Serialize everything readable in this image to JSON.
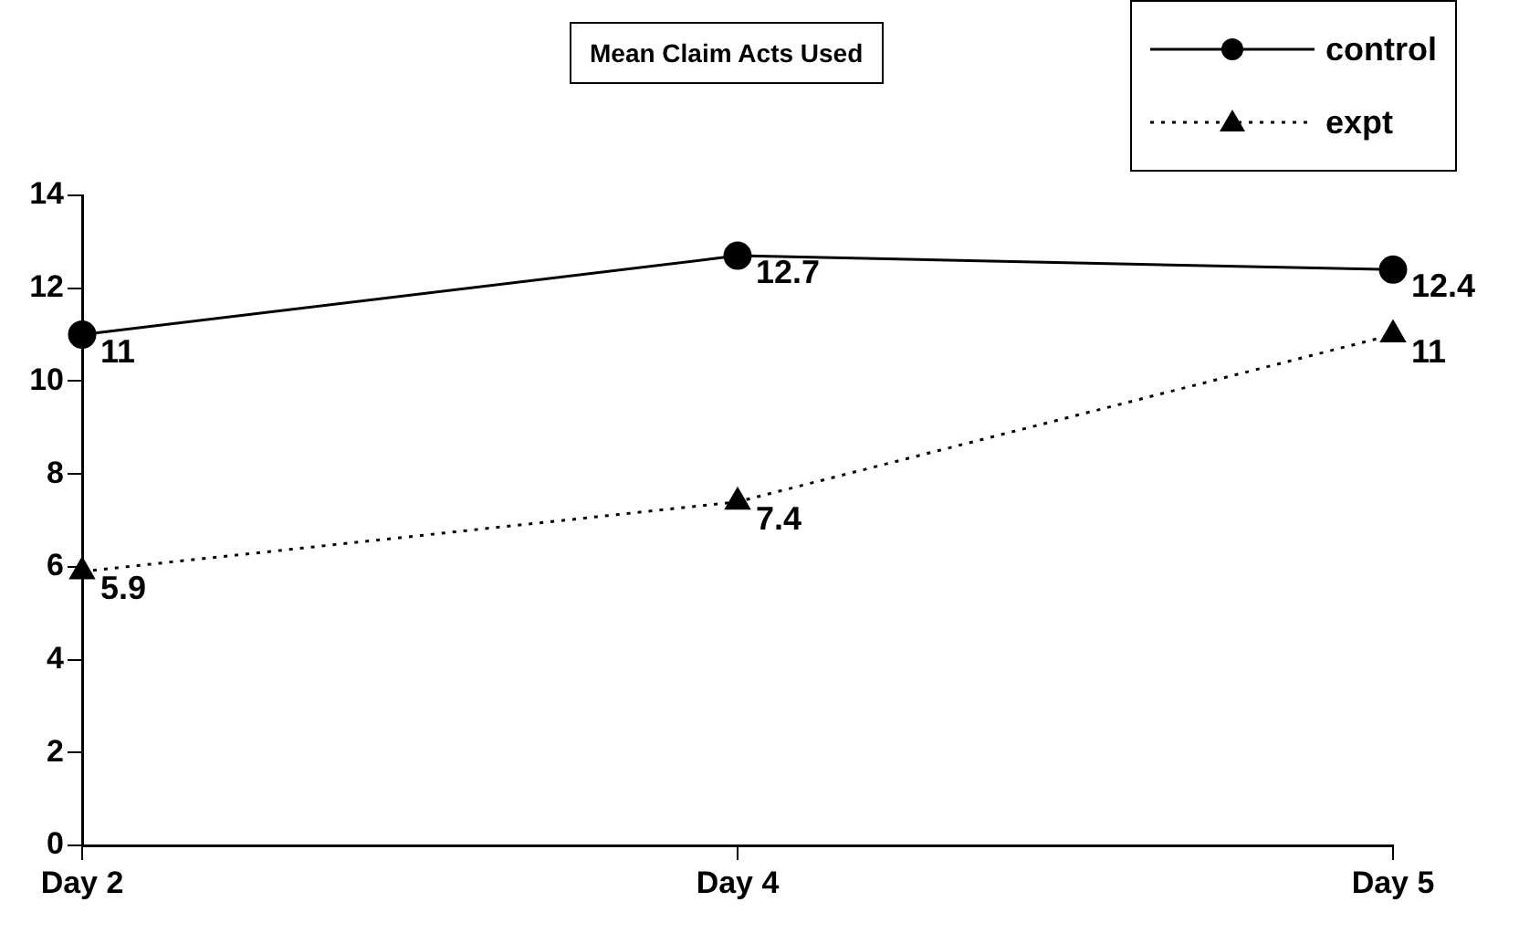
{
  "chart_data": {
    "type": "line",
    "title": "Mean Claim Acts Used",
    "categories": [
      "Day 2",
      "Day 4",
      "Day 5"
    ],
    "series": [
      {
        "name": "control",
        "color": "#000000",
        "values": [
          11,
          12.7,
          12.4
        ],
        "marker": "circle",
        "line_style": "solid"
      },
      {
        "name": "expt",
        "color": "#000000",
        "values": [
          5.9,
          7.4,
          11
        ],
        "marker": "triangle",
        "line_style": "dotted"
      }
    ],
    "ylim": [
      0,
      14
    ],
    "yticks": [
      0,
      2,
      4,
      6,
      8,
      10,
      12,
      14
    ],
    "grid": false,
    "legend": "top right",
    "data_labels": true
  }
}
